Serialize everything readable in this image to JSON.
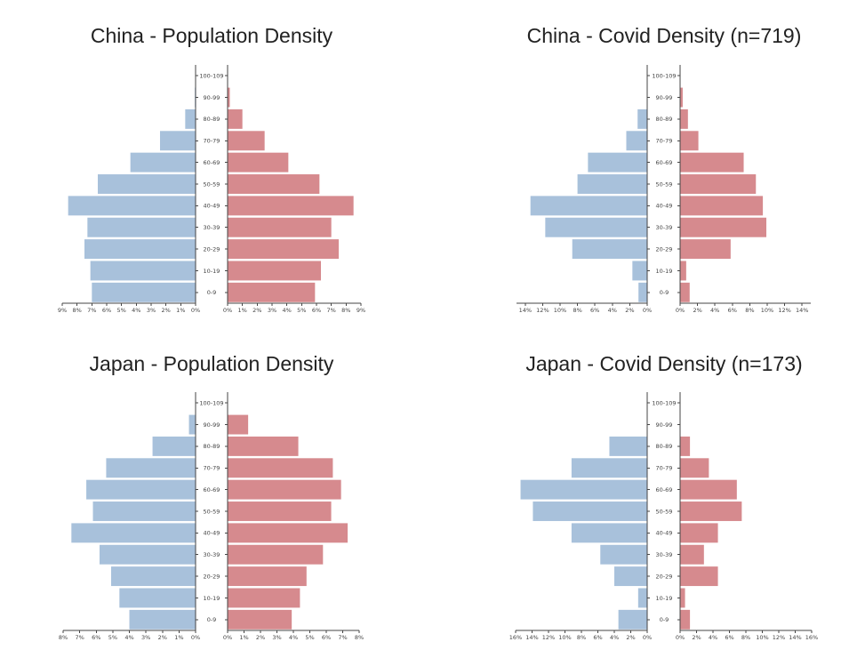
{
  "colors": {
    "left": "#a8c1db",
    "right": "#d68a8e"
  },
  "chart_data": [
    {
      "type": "bar",
      "orientation": "horizontal-population-pyramid",
      "title": "China - Population Density",
      "categories": [
        "0-9",
        "10-19",
        "20-29",
        "30-39",
        "40-49",
        "50-59",
        "60-69",
        "70-79",
        "80-89",
        "90-99",
        "100-109"
      ],
      "series": [
        {
          "side": "left",
          "values": [
            7.0,
            7.1,
            7.5,
            7.3,
            8.6,
            6.6,
            4.4,
            2.4,
            0.7,
            0.05,
            0.0
          ]
        },
        {
          "side": "right",
          "values": [
            5.9,
            6.3,
            7.5,
            7.0,
            8.5,
            6.2,
            4.1,
            2.5,
            1.0,
            0.15,
            0.0
          ]
        }
      ],
      "left_ticks": [
        "9%",
        "8%",
        "7%",
        "6%",
        "5%",
        "4%",
        "3%",
        "2%",
        "1%",
        "0%"
      ],
      "right_ticks": [
        "0%",
        "1%",
        "2%",
        "3%",
        "4%",
        "5%",
        "6%",
        "7%",
        "8%",
        "9%"
      ],
      "xlim": [
        0,
        9
      ]
    },
    {
      "type": "bar",
      "orientation": "horizontal-population-pyramid",
      "title": "China - Covid Density (n=719)",
      "categories": [
        "0-9",
        "10-19",
        "20-29",
        "30-39",
        "40-49",
        "50-59",
        "60-69",
        "70-79",
        "80-89",
        "90-99",
        "100-109"
      ],
      "series": [
        {
          "side": "left",
          "values": [
            1.0,
            1.7,
            8.6,
            11.7,
            13.4,
            8.0,
            6.8,
            2.4,
            1.1,
            0.0,
            0.0
          ]
        },
        {
          "side": "right",
          "values": [
            1.1,
            0.7,
            5.8,
            9.9,
            9.5,
            8.7,
            7.3,
            2.1,
            0.9,
            0.3,
            0.0
          ]
        }
      ],
      "left_ticks": [
        "14%",
        "12%",
        "10%",
        "8%",
        "6%",
        "4%",
        "2%",
        "0%"
      ],
      "right_ticks": [
        "0%",
        "2%",
        "4%",
        "6%",
        "8%",
        "10%",
        "12%",
        "14%"
      ],
      "xlim": [
        0,
        15
      ]
    },
    {
      "type": "bar",
      "orientation": "horizontal-population-pyramid",
      "title": "Japan - Population Density",
      "categories": [
        "0-9",
        "10-19",
        "20-29",
        "30-39",
        "40-49",
        "50-59",
        "60-69",
        "70-79",
        "80-89",
        "90-99",
        "100-109"
      ],
      "series": [
        {
          "side": "left",
          "values": [
            4.0,
            4.6,
            5.1,
            5.8,
            7.5,
            6.2,
            6.6,
            5.4,
            2.6,
            0.4,
            0.0
          ]
        },
        {
          "side": "right",
          "values": [
            3.9,
            4.4,
            4.8,
            5.8,
            7.3,
            6.3,
            6.9,
            6.4,
            4.3,
            1.25,
            0.0
          ]
        }
      ],
      "left_ticks": [
        "8%",
        "7%",
        "6%",
        "5%",
        "4%",
        "3%",
        "2%",
        "1%",
        "0%"
      ],
      "right_ticks": [
        "0%",
        "1%",
        "2%",
        "3%",
        "4%",
        "5%",
        "6%",
        "7%",
        "8%"
      ],
      "xlim": [
        0,
        8
      ]
    },
    {
      "type": "bar",
      "orientation": "horizontal-population-pyramid",
      "title": "Japan - Covid Density (n=173)",
      "categories": [
        "0-9",
        "10-19",
        "20-29",
        "30-39",
        "40-49",
        "50-59",
        "60-69",
        "70-79",
        "80-89",
        "90-99",
        "100-109"
      ],
      "series": [
        {
          "side": "left",
          "values": [
            3.5,
            1.1,
            4.0,
            5.7,
            9.2,
            13.9,
            15.4,
            9.2,
            4.6,
            0.0,
            0.0
          ]
        },
        {
          "side": "right",
          "values": [
            1.2,
            0.6,
            4.6,
            2.9,
            4.6,
            7.5,
            6.9,
            3.5,
            1.2,
            0.0,
            0.0
          ]
        }
      ],
      "left_ticks": [
        "16%",
        "14%",
        "12%",
        "10%",
        "8%",
        "6%",
        "4%",
        "2%",
        "0%"
      ],
      "right_ticks": [
        "0%",
        "2%",
        "4%",
        "6%",
        "8%",
        "10%",
        "12%",
        "14%",
        "16%"
      ],
      "xlim": [
        0,
        16
      ]
    }
  ]
}
